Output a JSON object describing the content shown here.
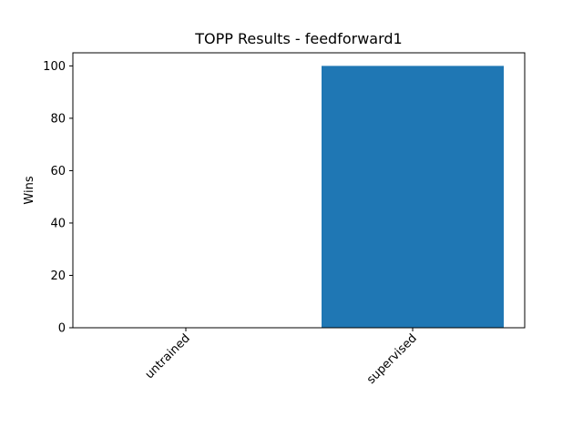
{
  "chart_data": {
    "type": "bar",
    "title": "TOPP Results - feedforward1",
    "xlabel": "",
    "ylabel": "Wins",
    "categories": [
      "untrained",
      "supervised"
    ],
    "values": [
      0,
      100
    ],
    "ylim": [
      0,
      105
    ],
    "yticks": [
      0,
      20,
      40,
      60,
      80,
      100
    ],
    "grid": false,
    "bar_color": "#1f77b4",
    "x_tick_rotation_deg": 45
  }
}
